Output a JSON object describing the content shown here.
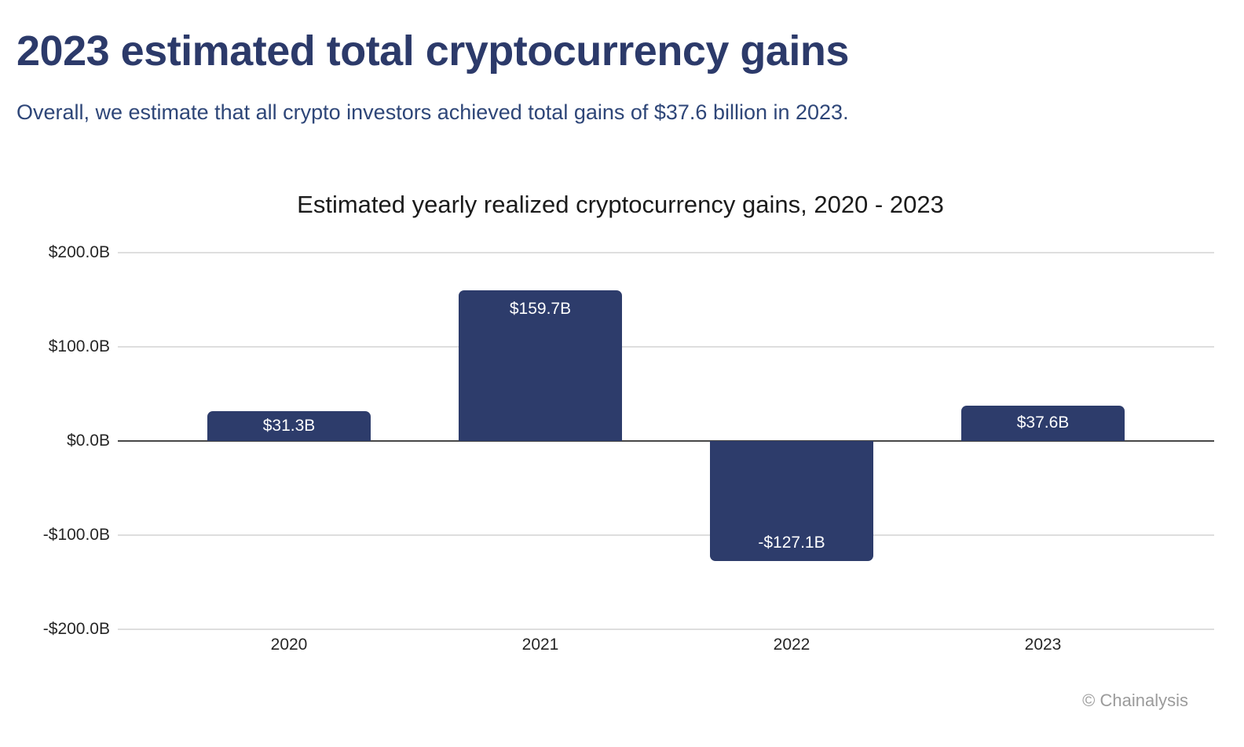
{
  "page": {
    "title": "2023 estimated total cryptocurrency gains",
    "subtitle": "Overall, we estimate that all crypto investors achieved total gains of $37.6 billion in 2023.",
    "watermark": "© Chainalysis"
  },
  "colors": {
    "background": "#ffffff",
    "title_text": "#2c3a6a",
    "subtitle_text": "#2e4678",
    "chart_title_text": "#1b1b1b",
    "bar_fill": "#2d3c6b",
    "bar_label_text": "#ffffff",
    "axis_text": "#262626",
    "gridline": "#dedede",
    "zero_line": "#474747",
    "watermark_text": "#9b9b9b"
  },
  "chart_data": {
    "type": "bar",
    "title": "Estimated yearly realized cryptocurrency gains, 2020 - 2023",
    "categories": [
      "2020",
      "2021",
      "2022",
      "2023"
    ],
    "values": [
      31.3,
      159.7,
      -127.1,
      37.6
    ],
    "bar_labels": [
      "$31.3B",
      "$159.7B",
      "-$127.1B",
      "$37.6B"
    ],
    "ylim": [
      -200,
      200
    ],
    "yticks": [
      200,
      100,
      0,
      -100,
      -200
    ],
    "ytick_labels": [
      "$200.0B",
      "$100.0B",
      "$0.0B",
      "-$100.0B",
      "-$200.0B"
    ],
    "grid": true,
    "legend_position": "none"
  }
}
